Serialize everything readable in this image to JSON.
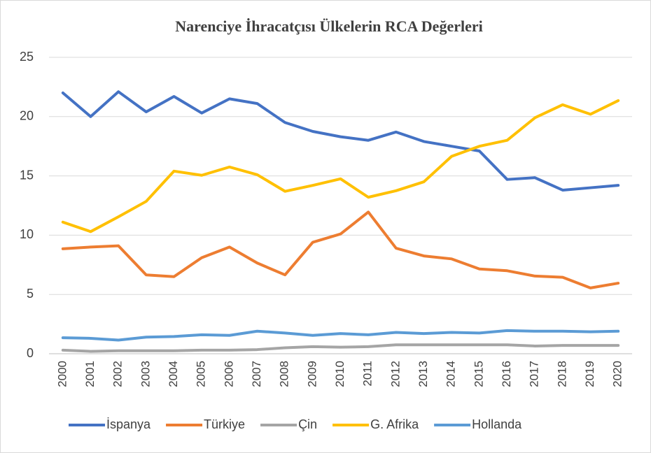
{
  "chart_data": {
    "type": "line",
    "title": "Narenciye İhracatçısı Ülkelerin RCA Değerleri",
    "categories": [
      "2000",
      "2001",
      "2002",
      "2003",
      "2004",
      "2005",
      "2006",
      "2007",
      "2008",
      "2009",
      "2010",
      "2011",
      "2012",
      "2013",
      "2014",
      "2015",
      "2016",
      "2017",
      "2018",
      "2019",
      "2020"
    ],
    "series": [
      {
        "name": "İspanya",
        "color": "#4472c4",
        "values": [
          22.0,
          20.0,
          22.1,
          20.4,
          21.7,
          20.3,
          21.5,
          21.1,
          19.5,
          18.75,
          18.3,
          18.0,
          18.7,
          17.9,
          17.5,
          17.1,
          14.7,
          14.85,
          13.8,
          14.0,
          14.2
        ]
      },
      {
        "name": "Türkiye",
        "color": "#ed7d31",
        "values": [
          8.85,
          9.0,
          9.1,
          6.65,
          6.5,
          8.1,
          9.0,
          7.65,
          6.65,
          9.4,
          10.1,
          11.95,
          8.9,
          8.25,
          8.0,
          7.15,
          7.0,
          6.55,
          6.45,
          5.55,
          5.95
        ]
      },
      {
        "name": "Çin",
        "color": "#a5a5a5",
        "values": [
          0.3,
          0.2,
          0.25,
          0.25,
          0.25,
          0.3,
          0.3,
          0.35,
          0.5,
          0.6,
          0.55,
          0.6,
          0.75,
          0.75,
          0.75,
          0.75,
          0.75,
          0.65,
          0.7,
          0.7,
          0.7
        ]
      },
      {
        "name": "G. Afrika",
        "color": "#ffc000",
        "values": [
          11.1,
          10.3,
          11.55,
          12.85,
          15.4,
          15.05,
          15.75,
          15.1,
          13.7,
          14.2,
          14.75,
          13.2,
          13.75,
          14.5,
          16.65,
          17.5,
          18.0,
          19.9,
          21.0,
          20.2,
          21.35
        ]
      },
      {
        "name": "Hollanda",
        "color": "#5b9bd5",
        "values": [
          1.35,
          1.3,
          1.15,
          1.4,
          1.45,
          1.6,
          1.55,
          1.9,
          1.75,
          1.55,
          1.7,
          1.6,
          1.8,
          1.7,
          1.8,
          1.75,
          1.95,
          1.9,
          1.9,
          1.85,
          1.9
        ]
      }
    ],
    "ylim": [
      0,
      25
    ],
    "yticks": [
      0,
      5,
      10,
      15,
      20,
      25
    ],
    "grid": true,
    "legend": "bottom"
  }
}
